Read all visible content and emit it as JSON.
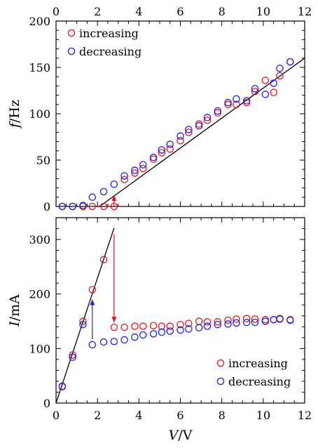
{
  "colors": {
    "increasing": "#e8141e",
    "decreasing": "#1e1ee8",
    "fit": "#000000",
    "axis": "#000000"
  },
  "chart_data": [
    {
      "type": "scatter",
      "panel": "top",
      "ylabel_var": "f",
      "ylabel_unit": "/Hz",
      "xlim": [
        0,
        12
      ],
      "ylim": [
        0,
        200
      ],
      "xticks": [
        "0",
        "2",
        "4",
        "6",
        "8",
        "10",
        "12"
      ],
      "yticks": [
        "0",
        "50",
        "100",
        "150",
        "200"
      ],
      "top_tick_labels": true,
      "legend_position": "top-left",
      "series": [
        {
          "name": "increasing",
          "marker": "open-circle",
          "points": [
            [
              0.3,
              0
            ],
            [
              0.8,
              0
            ],
            [
              1.3,
              0
            ],
            [
              1.75,
              0
            ],
            [
              2.3,
              0
            ],
            [
              2.8,
              0
            ],
            [
              3.3,
              29
            ],
            [
              3.8,
              36
            ],
            [
              4.2,
              41
            ],
            [
              4.7,
              51
            ],
            [
              5.1,
              58
            ],
            [
              5.5,
              62
            ],
            [
              6.0,
              71
            ],
            [
              6.4,
              80
            ],
            [
              6.9,
              89
            ],
            [
              7.3,
              93
            ],
            [
              7.8,
              101
            ],
            [
              8.3,
              110
            ],
            [
              8.7,
              110
            ],
            [
              9.2,
              112
            ],
            [
              9.6,
              124
            ],
            [
              10.1,
              136
            ],
            [
              10.5,
              123
            ],
            [
              10.8,
              141
            ],
            [
              11.3,
              156
            ]
          ]
        },
        {
          "name": "decreasing",
          "marker": "open-circle",
          "points": [
            [
              0.3,
              0
            ],
            [
              0.8,
              0
            ],
            [
              1.3,
              1
            ],
            [
              1.75,
              10
            ],
            [
              2.3,
              16
            ],
            [
              2.8,
              24
            ],
            [
              3.3,
              33
            ],
            [
              3.8,
              39
            ],
            [
              4.2,
              45
            ],
            [
              4.7,
              53
            ],
            [
              5.1,
              61
            ],
            [
              5.5,
              67
            ],
            [
              6.0,
              76
            ],
            [
              6.4,
              83
            ],
            [
              6.9,
              87
            ],
            [
              7.3,
              96
            ],
            [
              7.8,
              103
            ],
            [
              8.3,
              112
            ],
            [
              8.7,
              116
            ],
            [
              9.2,
              114
            ],
            [
              9.6,
              127
            ],
            [
              10.1,
              121
            ],
            [
              10.5,
              133
            ],
            [
              10.8,
              149
            ],
            [
              11.3,
              156
            ]
          ]
        }
      ],
      "fit_line": [
        [
          2.1,
          0
        ],
        [
          12,
          160
        ]
      ],
      "arrows": [
        {
          "series": "increasing",
          "x": 2.8,
          "from": 0,
          "to": 12
        }
      ]
    },
    {
      "type": "scatter",
      "panel": "bottom",
      "xlabel_var": "V",
      "xlabel_unit": "/V",
      "ylabel_var": "I",
      "ylabel_unit": "/mA",
      "xlim": [
        0,
        12
      ],
      "ylim": [
        0,
        340
      ],
      "xticks": [
        "0",
        "2",
        "4",
        "6",
        "8",
        "10",
        "12"
      ],
      "yticks": [
        "0",
        "100",
        "200",
        "300"
      ],
      "legend_position": "bottom-right",
      "series": [
        {
          "name": "increasing",
          "marker": "open-circle",
          "points": [
            [
              0.3,
              31
            ],
            [
              0.8,
              88
            ],
            [
              1.3,
              150
            ],
            [
              1.75,
              208
            ],
            [
              2.3,
              263
            ],
            [
              2.8,
              139
            ],
            [
              3.3,
              139
            ],
            [
              3.8,
              141
            ],
            [
              4.2,
              141
            ],
            [
              4.7,
              142
            ],
            [
              5.1,
              141
            ],
            [
              5.5,
              141
            ],
            [
              6.0,
              144
            ],
            [
              6.4,
              146
            ],
            [
              6.9,
              150
            ],
            [
              7.3,
              149
            ],
            [
              7.8,
              149
            ],
            [
              8.3,
              152
            ],
            [
              8.7,
              154
            ],
            [
              9.2,
              155
            ],
            [
              9.6,
              154
            ],
            [
              10.1,
              153
            ],
            [
              10.5,
              153
            ],
            [
              10.8,
              155
            ],
            [
              11.3,
              153
            ]
          ]
        },
        {
          "name": "decreasing",
          "marker": "open-circle",
          "points": [
            [
              0.3,
              30
            ],
            [
              0.8,
              84
            ],
            [
              1.3,
              144
            ],
            [
              1.75,
              107
            ],
            [
              2.3,
              112
            ],
            [
              2.8,
              113
            ],
            [
              3.3,
              116
            ],
            [
              3.8,
              121
            ],
            [
              4.2,
              125
            ],
            [
              4.7,
              127
            ],
            [
              5.1,
              130
            ],
            [
              5.5,
              132
            ],
            [
              6.0,
              134
            ],
            [
              6.4,
              136
            ],
            [
              6.9,
              138
            ],
            [
              7.3,
              141
            ],
            [
              7.8,
              144
            ],
            [
              8.3,
              145
            ],
            [
              8.7,
              147
            ],
            [
              9.2,
              148
            ],
            [
              9.6,
              148
            ],
            [
              10.1,
              150
            ],
            [
              10.5,
              153
            ],
            [
              10.8,
              154
            ],
            [
              11.3,
              152
            ]
          ]
        }
      ],
      "fit_line": [
        [
          0,
          0
        ],
        [
          2.8,
          321
        ]
      ],
      "arrows": [
        {
          "series": "increasing",
          "x": 2.8,
          "from": 310,
          "to": 148
        },
        {
          "series": "decreasing",
          "x": 1.75,
          "from": 117,
          "to": 190
        }
      ]
    }
  ]
}
